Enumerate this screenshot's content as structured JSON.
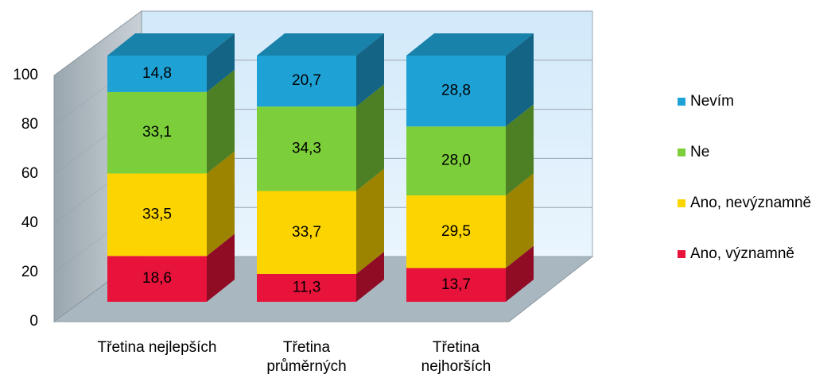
{
  "chart_data": {
    "type": "bar3d_stacked",
    "categories": [
      "Třetina nejlepších",
      "Třetina průměrných",
      "Třetina nejhorších"
    ],
    "series": [
      {
        "name": "Ano, významně",
        "color": "#e8133b",
        "values": [
          18.6,
          11.3,
          13.7
        ],
        "value_labels": [
          "18,6",
          "11,3",
          "13,7"
        ]
      },
      {
        "name": "Ano, nevýznamně",
        "color": "#fcd400",
        "values": [
          33.5,
          33.7,
          29.5
        ],
        "value_labels": [
          "33,5",
          "33,7",
          "29,5"
        ]
      },
      {
        "name": "Ne",
        "color": "#7ccf3a",
        "values": [
          33.1,
          34.3,
          28.0
        ],
        "value_labels": [
          "33,1",
          "34,3",
          "28,0"
        ]
      },
      {
        "name": "Nevím",
        "color": "#1ea2d6",
        "values": [
          14.8,
          20.7,
          28.8
        ],
        "value_labels": [
          "14,8",
          "20,7",
          "28,8"
        ]
      }
    ],
    "ylim": [
      0,
      100
    ],
    "yticks": [
      0,
      20,
      40,
      60,
      80,
      100
    ],
    "grid": true,
    "legend": "right"
  }
}
